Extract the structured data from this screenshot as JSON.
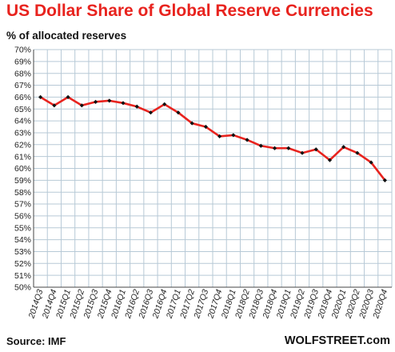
{
  "header": {
    "title": "US Dollar Share of Global  Reserve Currencies",
    "subtitle": "% of allocated reserves"
  },
  "footer": {
    "source": "Source: IMF",
    "brand": "WOLFSTREET.com"
  },
  "colors": {
    "line": "#e8231e",
    "marker": "#111111",
    "grid": "#b7c9d6",
    "title": "#e8231e"
  },
  "chart_data": {
    "type": "line",
    "title": "US Dollar Share of Global  Reserve Currencies",
    "ylabel": "% of allocated reserves",
    "xlabel": "",
    "ylim": [
      50,
      70
    ],
    "y_ticks": [
      "50%",
      "51%",
      "52%",
      "53%",
      "54%",
      "55%",
      "56%",
      "57%",
      "58%",
      "59%",
      "60%",
      "61%",
      "62%",
      "63%",
      "64%",
      "65%",
      "66%",
      "67%",
      "68%",
      "69%",
      "70%"
    ],
    "grid": true,
    "categories": [
      "2014Q3",
      "2014Q4",
      "2015Q1",
      "2015Q2",
      "2015Q3",
      "2015Q4",
      "2016Q1",
      "2016Q2",
      "2016Q3",
      "2016Q4",
      "2017Q1",
      "2017Q2",
      "2017Q3",
      "2017Q4",
      "2018Q1",
      "2018Q2",
      "2018Q3",
      "2018Q4",
      "2019Q1",
      "2019Q2",
      "2019Q3",
      "2019Q4",
      "2020Q1",
      "2020Q2",
      "2020Q3",
      "2020Q4"
    ],
    "series": [
      {
        "values": [
          66.0,
          65.3,
          66.0,
          65.3,
          65.6,
          65.7,
          65.5,
          65.2,
          64.7,
          65.4,
          64.7,
          63.8,
          63.5,
          62.7,
          62.8,
          62.4,
          61.9,
          61.7,
          61.7,
          61.3,
          61.6,
          60.7,
          61.8,
          61.3,
          60.5,
          59.0
        ]
      }
    ]
  }
}
